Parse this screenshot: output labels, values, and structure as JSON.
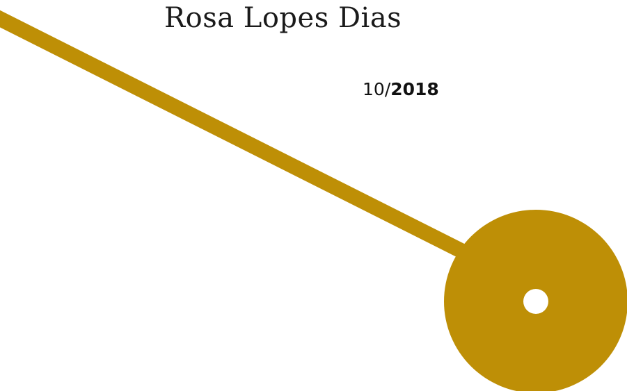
{
  "cover": {
    "author": "Rosa Lopes Dias",
    "date": {
      "month": "10",
      "separator": "/",
      "year": "2018"
    }
  },
  "colors": {
    "background": "#ffffff",
    "accent": "#be8f06",
    "text": "#1a1a1a"
  },
  "icons": {
    "decoration": "pendulum-graphic"
  }
}
